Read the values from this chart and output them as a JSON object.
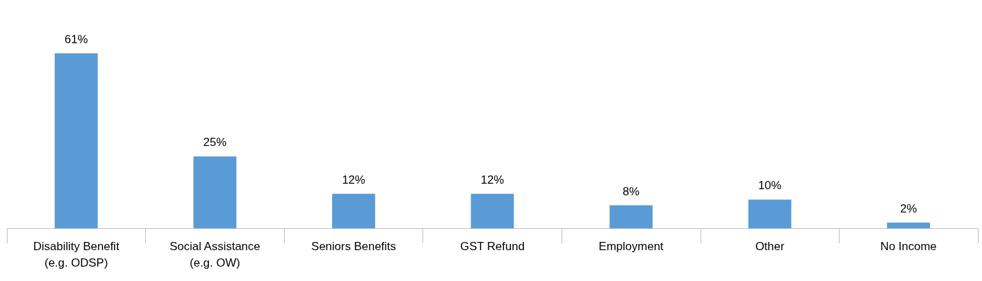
{
  "chart_data": {
    "type": "bar",
    "categories": [
      "Disability Benefit\n(e.g. ODSP)",
      "Social Assistance\n(e.g. OW)",
      "Seniors Benefits",
      "GST Refund",
      "Employment",
      "Other",
      "No Income"
    ],
    "values": [
      61,
      25,
      12,
      12,
      8,
      10,
      2
    ],
    "value_labels": [
      "61%",
      "25%",
      "12%",
      "12%",
      "8%",
      "10%",
      "2%"
    ],
    "color": "#5b9bd5"
  }
}
